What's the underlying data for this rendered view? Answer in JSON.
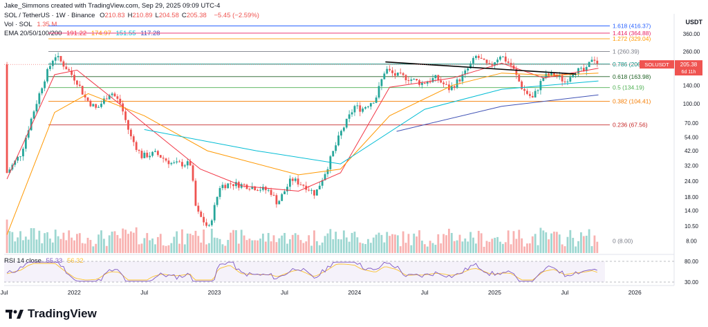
{
  "caption": "Jake_Simmons created with TradingView.com, Sep 29, 2025 09:09 UTC-4",
  "header": {
    "symbol": "SOL / TetherUS · 1W · Binance",
    "ohlc": [
      {
        "k": "O",
        "v": "210.83"
      },
      {
        "k": "H",
        "v": "210.89"
      },
      {
        "k": "L",
        "v": "204.58"
      },
      {
        "k": "C",
        "v": "205.38"
      }
    ],
    "change": "−5.45 (−2.59%)",
    "vol_label": "Vol · SOL",
    "vol_value": "1.35 M",
    "ema_label": "EMA 20/50/100/200",
    "ema_values": [
      "191.22",
      "174.97",
      "151.55",
      "117.28"
    ],
    "rsi_label": "RSI 14 close",
    "rsi_values": [
      "55.33",
      "56.32"
    ]
  },
  "brand": "TradingView",
  "unit": "USDT",
  "colors": {
    "up": "#26a69a",
    "down": "#ef5350",
    "ema20": "#f23645",
    "ema50": "#ff9800",
    "ema100": "#00bcd4",
    "ema200": "#3f51b5",
    "trendline": "#000000",
    "rsi": "#7e57c2",
    "rsi_ma": "#fbc02d",
    "price_tag": "#ef5350"
  },
  "price_tag": {
    "symbol": "SOLUSDT",
    "price": "205.38",
    "countdown": "6d 11h"
  },
  "chart_data": {
    "type": "candlestick",
    "title": "SOL / TetherUS · 1W · Binance",
    "y_scale": "log",
    "y_ticks": [
      360,
      260,
      200,
      140,
      100,
      70,
      54,
      42,
      32,
      24,
      18,
      14,
      10.5,
      8
    ],
    "x_ticks": [
      "Jul",
      "2022",
      "Jul",
      "2023",
      "Jul",
      "2024",
      "Jul",
      "2025",
      "Jul",
      "2026"
    ],
    "fib_levels": [
      {
        "label": "1.618 (416.37)",
        "value": 416.37,
        "color": "#2962ff"
      },
      {
        "label": "1.414 (364.88)",
        "value": 364.88,
        "color": "#e91e63"
      },
      {
        "label": "1.272 (329.04)",
        "value": 329.04,
        "color": "#ff9800"
      },
      {
        "label": "1 (260.39)",
        "value": 260.39,
        "color": "#787b86"
      },
      {
        "label": "0.786 (206.38)",
        "value": 206.38,
        "color": "#00897b"
      },
      {
        "label": "0.618 (163.98)",
        "value": 163.98,
        "color": "#1b5e20"
      },
      {
        "label": "0.5 (134.19)",
        "value": 134.19,
        "color": "#4caf50"
      },
      {
        "label": "0.382 (104.41)",
        "value": 104.41,
        "color": "#f57c00"
      },
      {
        "label": "0.236 (67.56)",
        "value": 67.56,
        "color": "#c62828"
      },
      {
        "label": "0 (8.00)",
        "value": 8.0,
        "color": "#787b86"
      }
    ],
    "close_anchors": [
      {
        "t": 2021.52,
        "c": 28
      },
      {
        "t": 2021.62,
        "c": 40
      },
      {
        "t": 2021.7,
        "c": 80
      },
      {
        "t": 2021.78,
        "c": 150
      },
      {
        "t": 2021.86,
        "c": 245
      },
      {
        "t": 2021.94,
        "c": 195
      },
      {
        "t": 2022.02,
        "c": 150
      },
      {
        "t": 2022.08,
        "c": 110
      },
      {
        "t": 2022.16,
        "c": 90
      },
      {
        "t": 2022.26,
        "c": 125
      },
      {
        "t": 2022.33,
        "c": 100
      },
      {
        "t": 2022.4,
        "c": 55
      },
      {
        "t": 2022.48,
        "c": 38
      },
      {
        "t": 2022.58,
        "c": 40
      },
      {
        "t": 2022.7,
        "c": 33
      },
      {
        "t": 2022.83,
        "c": 33
      },
      {
        "t": 2022.87,
        "c": 14
      },
      {
        "t": 2022.96,
        "c": 10
      },
      {
        "t": 2023.04,
        "c": 22
      },
      {
        "t": 2023.12,
        "c": 23
      },
      {
        "t": 2023.25,
        "c": 22
      },
      {
        "t": 2023.4,
        "c": 20
      },
      {
        "t": 2023.45,
        "c": 16
      },
      {
        "t": 2023.55,
        "c": 25
      },
      {
        "t": 2023.65,
        "c": 22
      },
      {
        "t": 2023.72,
        "c": 19
      },
      {
        "t": 2023.8,
        "c": 30
      },
      {
        "t": 2023.9,
        "c": 58
      },
      {
        "t": 2024.0,
        "c": 95
      },
      {
        "t": 2024.05,
        "c": 90
      },
      {
        "t": 2024.15,
        "c": 110
      },
      {
        "t": 2024.22,
        "c": 190
      },
      {
        "t": 2024.28,
        "c": 170
      },
      {
        "t": 2024.38,
        "c": 160
      },
      {
        "t": 2024.48,
        "c": 145
      },
      {
        "t": 2024.58,
        "c": 160
      },
      {
        "t": 2024.68,
        "c": 130
      },
      {
        "t": 2024.78,
        "c": 170
      },
      {
        "t": 2024.87,
        "c": 240
      },
      {
        "t": 2024.96,
        "c": 195
      },
      {
        "t": 2025.04,
        "c": 245
      },
      {
        "t": 2025.12,
        "c": 200
      },
      {
        "t": 2025.2,
        "c": 130
      },
      {
        "t": 2025.27,
        "c": 110
      },
      {
        "t": 2025.35,
        "c": 165
      },
      {
        "t": 2025.43,
        "c": 170
      },
      {
        "t": 2025.5,
        "c": 150
      },
      {
        "t": 2025.57,
        "c": 185
      },
      {
        "t": 2025.65,
        "c": 180
      },
      {
        "t": 2025.7,
        "c": 240
      },
      {
        "t": 2025.74,
        "c": 205.38
      }
    ],
    "ema_series": [
      {
        "name": "EMA 20",
        "color": "#f23645",
        "points": [
          [
            2021.52,
            25
          ],
          [
            2021.86,
            170
          ],
          [
            2022.02,
            185
          ],
          [
            2022.4,
            85
          ],
          [
            2022.9,
            30
          ],
          [
            2023.2,
            22
          ],
          [
            2023.6,
            20
          ],
          [
            2023.9,
            28
          ],
          [
            2024.25,
            135
          ],
          [
            2024.7,
            160
          ],
          [
            2025.05,
            210
          ],
          [
            2025.35,
            160
          ],
          [
            2025.74,
            191.22
          ]
        ]
      },
      {
        "name": "EMA 50",
        "color": "#ff9800",
        "points": [
          [
            2021.52,
            9
          ],
          [
            2021.86,
            85
          ],
          [
            2022.1,
            120
          ],
          [
            2022.5,
            80
          ],
          [
            2022.95,
            42
          ],
          [
            2023.6,
            27
          ],
          [
            2023.9,
            30
          ],
          [
            2024.25,
            80
          ],
          [
            2024.7,
            140
          ],
          [
            2025.05,
            175
          ],
          [
            2025.4,
            168
          ],
          [
            2025.74,
            174.97
          ]
        ]
      },
      {
        "name": "EMA 100",
        "color": "#00bcd4",
        "points": [
          [
            2022.5,
            62
          ],
          [
            2023.3,
            42
          ],
          [
            2023.9,
            33
          ],
          [
            2024.5,
            90
          ],
          [
            2025.05,
            130
          ],
          [
            2025.74,
            151.55
          ]
        ]
      },
      {
        "name": "EMA 200",
        "color": "#3f51b5",
        "points": [
          [
            2024.3,
            60
          ],
          [
            2025.05,
            95
          ],
          [
            2025.74,
            117.28
          ]
        ]
      }
    ],
    "trendline": {
      "from": [
        2024.22,
        215
      ],
      "to": [
        2025.58,
        172
      ]
    },
    "rsi": {
      "range": [
        30,
        80
      ],
      "value": 55.33,
      "ma": 56.32,
      "ticks": [
        80,
        30
      ]
    }
  }
}
